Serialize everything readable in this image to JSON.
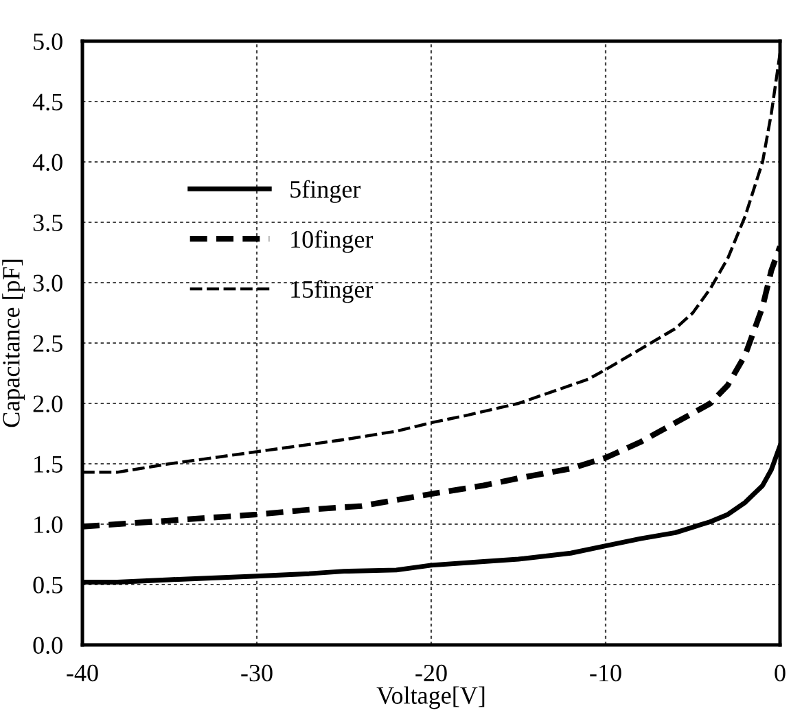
{
  "chart_data": {
    "type": "line",
    "xlabel": "Voltage[V]",
    "ylabel": "Capacitance [pF]",
    "xlim": [
      -40,
      0
    ],
    "ylim": [
      0,
      5
    ],
    "xticks": [
      -40,
      -30,
      -20,
      -10,
      0
    ],
    "yticks": [
      {
        "value": 0,
        "label": "0.0"
      },
      0.5,
      {
        "value": 1,
        "label": "1.0"
      },
      1.5,
      {
        "value": 2,
        "label": "2.0"
      },
      2.5,
      {
        "value": 3,
        "label": "3.0"
      },
      3.5,
      {
        "value": 4,
        "label": "4.0"
      },
      4.5,
      {
        "value": 5,
        "label": "5.0"
      }
    ],
    "grid": true,
    "legend": "top left",
    "marker": "none",
    "series": [
      {
        "name": "5finger",
        "color": "#000000",
        "line_style": "solid",
        "x": [
          -40,
          -38,
          -35,
          -30,
          -27,
          -25,
          -22,
          -20,
          -17,
          -15,
          -12,
          -10,
          -8,
          -6,
          -4,
          -3,
          -2,
          -1,
          -0.5,
          0
        ],
        "values": [
          0.52,
          0.52,
          0.54,
          0.57,
          0.59,
          0.61,
          0.62,
          0.66,
          0.69,
          0.71,
          0.76,
          0.82,
          0.88,
          0.93,
          1.02,
          1.08,
          1.18,
          1.32,
          1.45,
          1.65
        ]
      },
      {
        "name": "10finger",
        "color": "#000000",
        "line_style": "dashed",
        "x": [
          -40,
          -37,
          -34,
          -30,
          -27,
          -24,
          -22,
          -20,
          -17,
          -15,
          -12,
          -10,
          -8,
          -6,
          -4,
          -3,
          -2,
          -1,
          -0.5,
          0
        ],
        "values": [
          0.98,
          1.01,
          1.04,
          1.08,
          1.12,
          1.15,
          1.2,
          1.25,
          1.32,
          1.38,
          1.46,
          1.55,
          1.68,
          1.84,
          2.0,
          2.15,
          2.4,
          2.8,
          3.1,
          3.3
        ]
      },
      {
        "name": "15finger",
        "color": "#000000",
        "line_style": "dashed",
        "x": [
          -40,
          -38,
          -35,
          -32,
          -30,
          -27,
          -25,
          -22,
          -20,
          -18,
          -15,
          -13,
          -11,
          -10,
          -8,
          -6,
          -5,
          -4,
          -3,
          -2,
          -1,
          -0.5,
          0
        ],
        "values": [
          1.43,
          1.43,
          1.5,
          1.56,
          1.6,
          1.66,
          1.7,
          1.77,
          1.84,
          1.9,
          2.0,
          2.1,
          2.2,
          2.28,
          2.45,
          2.62,
          2.75,
          2.95,
          3.2,
          3.55,
          4.0,
          4.4,
          4.9
        ]
      }
    ]
  }
}
